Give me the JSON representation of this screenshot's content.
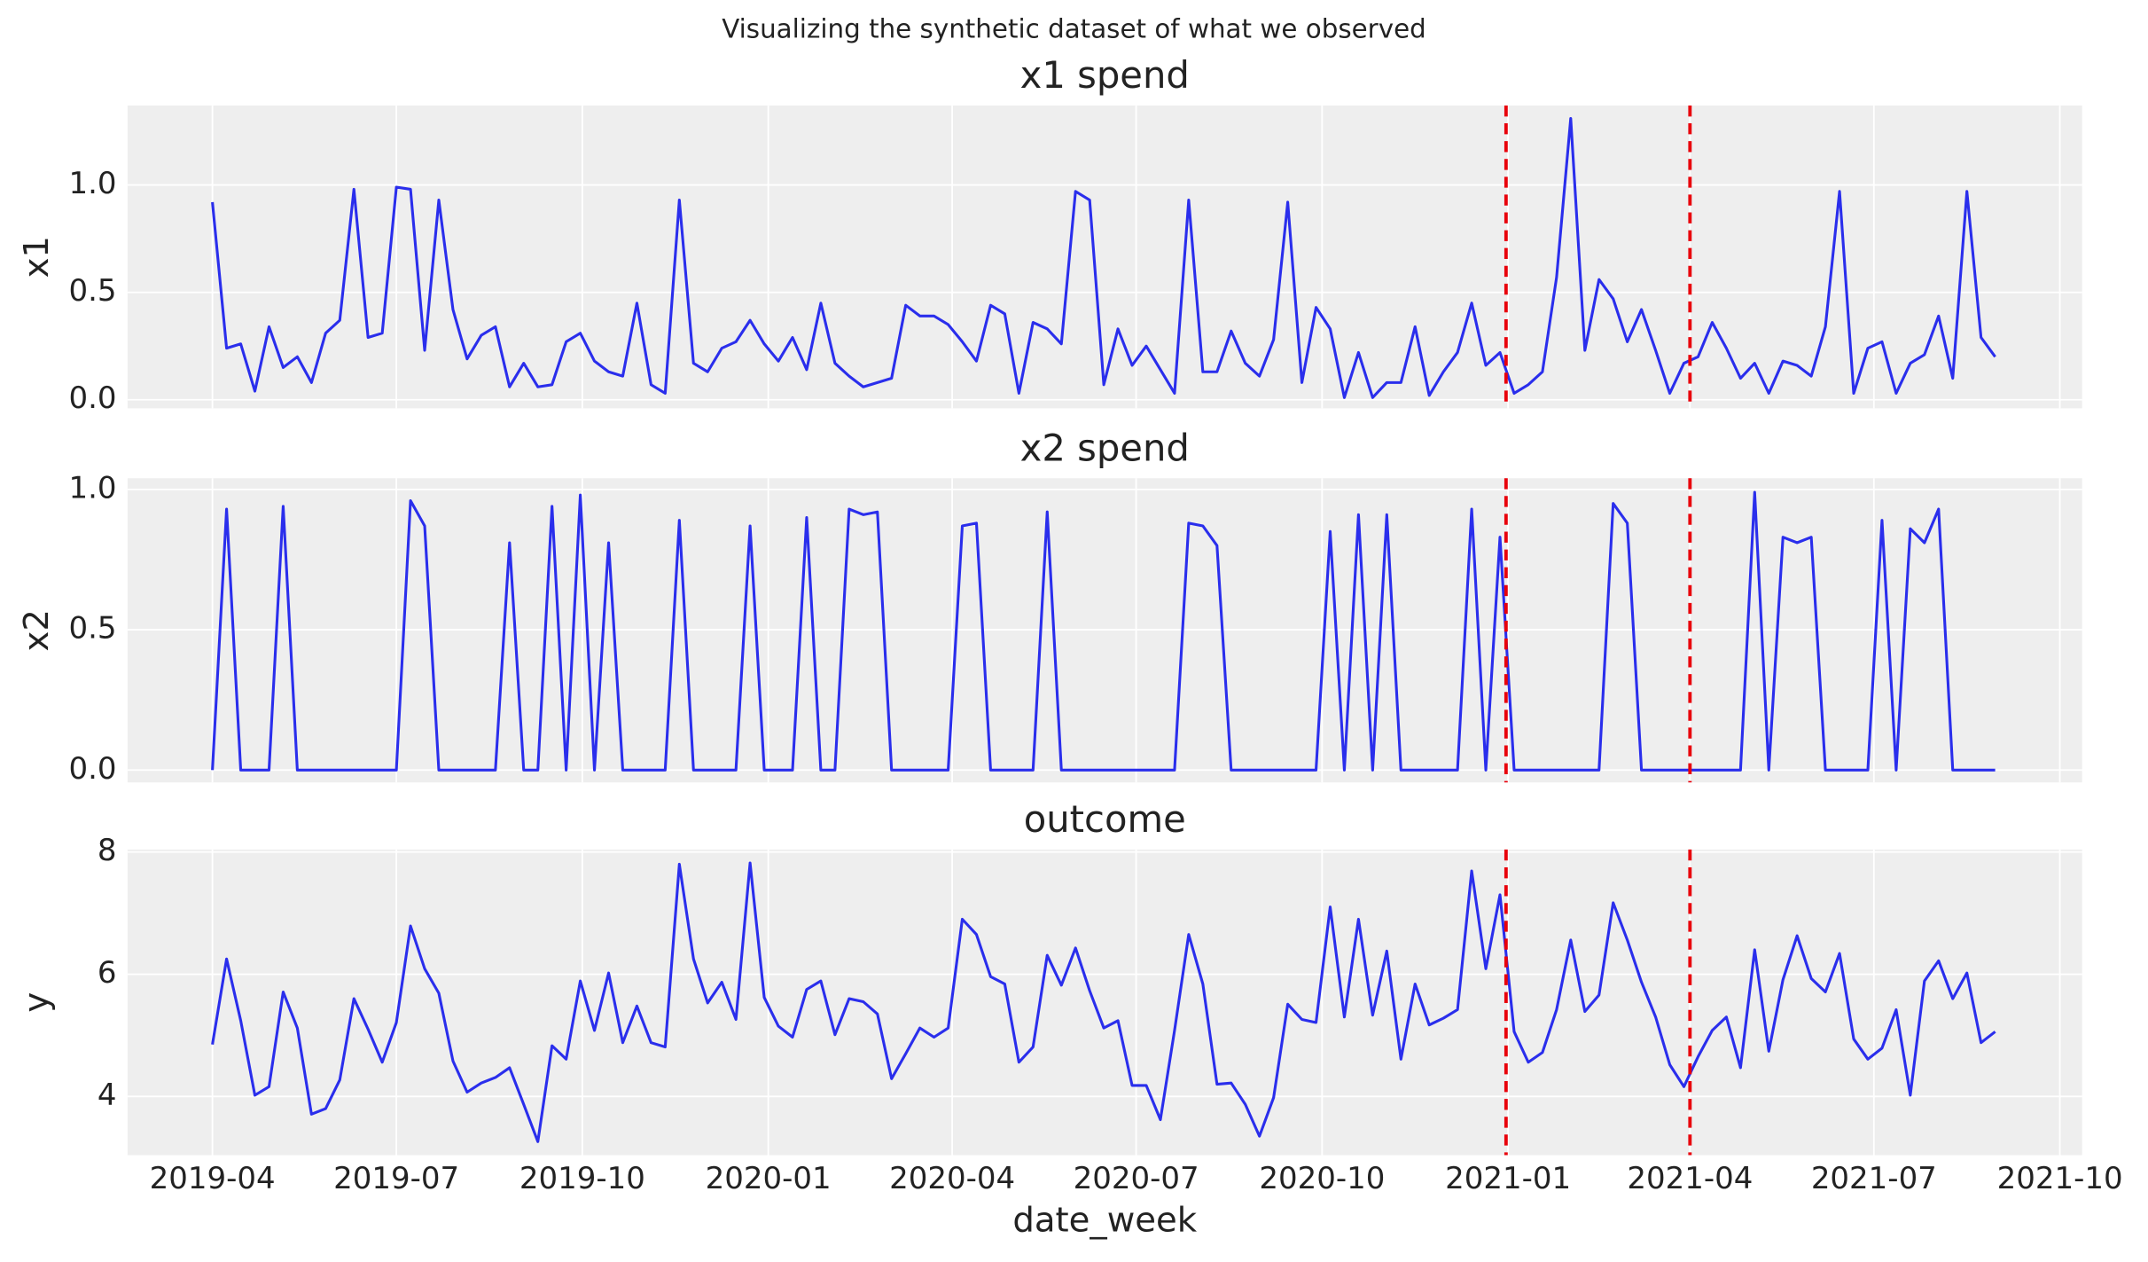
{
  "title": "Visualizing the synthetic dataset of what we observed",
  "chart_data": [
    {
      "type": "line",
      "title": "x1 spend",
      "ylabel": "x1",
      "x": [
        "2019-04-01",
        "2019-04-08",
        "2019-04-15",
        "2019-04-22",
        "2019-04-29",
        "2019-05-06",
        "2019-05-13",
        "2019-05-20",
        "2019-05-27",
        "2019-06-03",
        "2019-06-10",
        "2019-06-17",
        "2019-06-24",
        "2019-07-01",
        "2019-07-08",
        "2019-07-15",
        "2019-07-22",
        "2019-07-29",
        "2019-08-05",
        "2019-08-12",
        "2019-08-19",
        "2019-08-26",
        "2019-09-02",
        "2019-09-09",
        "2019-09-16",
        "2019-09-23",
        "2019-09-30",
        "2019-10-07",
        "2019-10-14",
        "2019-10-21",
        "2019-10-28",
        "2019-11-04",
        "2019-11-11",
        "2019-11-18",
        "2019-11-25",
        "2019-12-02",
        "2019-12-09",
        "2019-12-16",
        "2019-12-23",
        "2019-12-30",
        "2020-01-06",
        "2020-01-13",
        "2020-01-20",
        "2020-01-27",
        "2020-02-03",
        "2020-02-10",
        "2020-02-17",
        "2020-02-24",
        "2020-03-02",
        "2020-03-09",
        "2020-03-16",
        "2020-03-23",
        "2020-03-30",
        "2020-04-06",
        "2020-04-13",
        "2020-04-20",
        "2020-04-27",
        "2020-05-04",
        "2020-05-11",
        "2020-05-18",
        "2020-05-25",
        "2020-06-01",
        "2020-06-08",
        "2020-06-15",
        "2020-06-22",
        "2020-06-29",
        "2020-07-06",
        "2020-07-13",
        "2020-07-20",
        "2020-07-27",
        "2020-08-03",
        "2020-08-10",
        "2020-08-17",
        "2020-08-24",
        "2020-08-31",
        "2020-09-07",
        "2020-09-14",
        "2020-09-21",
        "2020-09-28",
        "2020-10-05",
        "2020-10-12",
        "2020-10-19",
        "2020-10-26",
        "2020-11-02",
        "2020-11-09",
        "2020-11-16",
        "2020-11-23",
        "2020-11-30",
        "2020-12-07",
        "2020-12-14",
        "2020-12-21",
        "2020-12-28",
        "2021-01-04",
        "2021-01-11",
        "2021-01-18",
        "2021-01-25",
        "2021-02-01",
        "2021-02-08",
        "2021-02-15",
        "2021-02-22",
        "2021-03-01",
        "2021-03-08",
        "2021-03-15",
        "2021-03-22",
        "2021-03-29",
        "2021-04-05",
        "2021-04-12",
        "2021-04-19",
        "2021-04-26",
        "2021-05-03",
        "2021-05-10",
        "2021-05-17",
        "2021-05-24",
        "2021-05-31",
        "2021-06-07",
        "2021-06-14",
        "2021-06-21",
        "2021-06-28",
        "2021-07-05",
        "2021-07-12",
        "2021-07-19",
        "2021-07-26",
        "2021-08-02",
        "2021-08-09",
        "2021-08-16",
        "2021-08-23",
        "2021-08-30"
      ],
      "values": [
        0.92,
        0.24,
        0.26,
        0.04,
        0.34,
        0.15,
        0.2,
        0.08,
        0.31,
        0.37,
        0.98,
        0.29,
        0.31,
        0.99,
        0.98,
        0.23,
        0.93,
        0.42,
        0.19,
        0.3,
        0.34,
        0.06,
        0.17,
        0.06,
        0.07,
        0.27,
        0.31,
        0.18,
        0.13,
        0.11,
        0.45,
        0.07,
        0.03,
        0.93,
        0.17,
        0.13,
        0.24,
        0.27,
        0.37,
        0.26,
        0.18,
        0.29,
        0.14,
        0.45,
        0.17,
        0.11,
        0.06,
        0.08,
        0.1,
        0.44,
        0.39,
        0.39,
        0.35,
        0.27,
        0.18,
        0.44,
        0.4,
        0.03,
        0.36,
        0.33,
        0.26,
        0.97,
        0.93,
        0.07,
        0.33,
        0.16,
        0.25,
        0.14,
        0.03,
        0.93,
        0.13,
        0.13,
        0.32,
        0.17,
        0.11,
        0.28,
        0.92,
        0.08,
        0.43,
        0.33,
        0.01,
        0.22,
        0.01,
        0.08,
        0.08,
        0.34,
        0.02,
        0.13,
        0.22,
        0.45,
        0.16,
        0.22,
        0.03,
        0.07,
        0.13,
        0.57,
        1.31,
        0.23,
        0.56,
        0.47,
        0.27,
        0.42,
        0.23,
        0.03,
        0.17,
        0.2,
        0.36,
        0.24,
        0.1,
        0.17,
        0.03,
        0.18,
        0.16,
        0.11,
        0.34,
        0.97,
        0.03,
        0.24,
        0.27,
        0.03,
        0.17,
        0.21,
        0.39,
        0.1,
        0.97,
        0.29,
        0.2
      ],
      "color": "#2a2eec",
      "xlim": [
        "2019-02-18",
        "2021-10-12"
      ],
      "ylim": [
        -0.04,
        1.37
      ],
      "yticks": [
        {
          "value": 0,
          "label": "0.0"
        },
        0.5,
        {
          "value": 1,
          "label": "1.0"
        }
      ],
      "grid": true,
      "vlines": [
        "2020-12-31",
        "2021-04-01"
      ],
      "vline_color": "#e8000b"
    },
    {
      "type": "line",
      "title": "x2 spend",
      "ylabel": "x2",
      "x": [
        "2019-04-01",
        "2019-04-08",
        "2019-04-15",
        "2019-04-22",
        "2019-04-29",
        "2019-05-06",
        "2019-05-13",
        "2019-05-20",
        "2019-05-27",
        "2019-06-03",
        "2019-06-10",
        "2019-06-17",
        "2019-06-24",
        "2019-07-01",
        "2019-07-08",
        "2019-07-15",
        "2019-07-22",
        "2019-07-29",
        "2019-08-05",
        "2019-08-12",
        "2019-08-19",
        "2019-08-26",
        "2019-09-02",
        "2019-09-09",
        "2019-09-16",
        "2019-09-23",
        "2019-09-30",
        "2019-10-07",
        "2019-10-14",
        "2019-10-21",
        "2019-10-28",
        "2019-11-04",
        "2019-11-11",
        "2019-11-18",
        "2019-11-25",
        "2019-12-02",
        "2019-12-09",
        "2019-12-16",
        "2019-12-23",
        "2019-12-30",
        "2020-01-06",
        "2020-01-13",
        "2020-01-20",
        "2020-01-27",
        "2020-02-03",
        "2020-02-10",
        "2020-02-17",
        "2020-02-24",
        "2020-03-02",
        "2020-03-09",
        "2020-03-16",
        "2020-03-23",
        "2020-03-30",
        "2020-04-06",
        "2020-04-13",
        "2020-04-20",
        "2020-04-27",
        "2020-05-04",
        "2020-05-11",
        "2020-05-18",
        "2020-05-25",
        "2020-06-01",
        "2020-06-08",
        "2020-06-15",
        "2020-06-22",
        "2020-06-29",
        "2020-07-06",
        "2020-07-13",
        "2020-07-20",
        "2020-07-27",
        "2020-08-03",
        "2020-08-10",
        "2020-08-17",
        "2020-08-24",
        "2020-08-31",
        "2020-09-07",
        "2020-09-14",
        "2020-09-21",
        "2020-09-28",
        "2020-10-05",
        "2020-10-12",
        "2020-10-19",
        "2020-10-26",
        "2020-11-02",
        "2020-11-09",
        "2020-11-16",
        "2020-11-23",
        "2020-11-30",
        "2020-12-07",
        "2020-12-14",
        "2020-12-21",
        "2020-12-28",
        "2021-01-04",
        "2021-01-11",
        "2021-01-18",
        "2021-01-25",
        "2021-02-01",
        "2021-02-08",
        "2021-02-15",
        "2021-02-22",
        "2021-03-01",
        "2021-03-08",
        "2021-03-15",
        "2021-03-22",
        "2021-03-29",
        "2021-04-05",
        "2021-04-12",
        "2021-04-19",
        "2021-04-26",
        "2021-05-03",
        "2021-05-10",
        "2021-05-17",
        "2021-05-24",
        "2021-05-31",
        "2021-06-07",
        "2021-06-14",
        "2021-06-21",
        "2021-06-28",
        "2021-07-05",
        "2021-07-12",
        "2021-07-19",
        "2021-07-26",
        "2021-08-02",
        "2021-08-09",
        "2021-08-16",
        "2021-08-23",
        "2021-08-30"
      ],
      "values": [
        0,
        0.93,
        0,
        0,
        0,
        0.94,
        0,
        0,
        0,
        0,
        0,
        0,
        0,
        0,
        0.96,
        0.87,
        0,
        0,
        0,
        0,
        0,
        0.81,
        0,
        0,
        0.94,
        0,
        0.98,
        0,
        0.81,
        0,
        0,
        0,
        0,
        0.89,
        0,
        0,
        0,
        0,
        0.87,
        0,
        0,
        0,
        0.9,
        0,
        0,
        0.93,
        0.91,
        0.92,
        0,
        0,
        0,
        0,
        0,
        0.87,
        0.88,
        0,
        0,
        0,
        0,
        0.92,
        0,
        0,
        0,
        0,
        0,
        0,
        0,
        0,
        0,
        0.88,
        0.87,
        0.8,
        0,
        0,
        0,
        0,
        0,
        0,
        0,
        0.85,
        0,
        0.91,
        0,
        0.91,
        0,
        0,
        0,
        0,
        0,
        0.93,
        0,
        0.83,
        0,
        0,
        0,
        0,
        0,
        0,
        0,
        0.95,
        0.88,
        0,
        0,
        0,
        0,
        0,
        0,
        0,
        0,
        0.99,
        0,
        0.83,
        0.81,
        0.83,
        0,
        0,
        0,
        0,
        0.89,
        0,
        0.86,
        0.81,
        0.93,
        0,
        0,
        0,
        0
      ],
      "color": "#2a2eec",
      "xlim": [
        "2019-02-18",
        "2021-10-12"
      ],
      "ylim": [
        -0.044,
        1.04
      ],
      "yticks": [
        {
          "value": 0,
          "label": "0.0"
        },
        0.5,
        {
          "value": 1,
          "label": "1.0"
        }
      ],
      "grid": true,
      "vlines": [
        "2020-12-31",
        "2021-04-01"
      ],
      "vline_color": "#e8000b"
    },
    {
      "type": "line",
      "title": "outcome",
      "ylabel": "y",
      "xlabel": "date_week",
      "x": [
        "2019-04-01",
        "2019-04-08",
        "2019-04-15",
        "2019-04-22",
        "2019-04-29",
        "2019-05-06",
        "2019-05-13",
        "2019-05-20",
        "2019-05-27",
        "2019-06-03",
        "2019-06-10",
        "2019-06-17",
        "2019-06-24",
        "2019-07-01",
        "2019-07-08",
        "2019-07-15",
        "2019-07-22",
        "2019-07-29",
        "2019-08-05",
        "2019-08-12",
        "2019-08-19",
        "2019-08-26",
        "2019-09-02",
        "2019-09-09",
        "2019-09-16",
        "2019-09-23",
        "2019-09-30",
        "2019-10-07",
        "2019-10-14",
        "2019-10-21",
        "2019-10-28",
        "2019-11-04",
        "2019-11-11",
        "2019-11-18",
        "2019-11-25",
        "2019-12-02",
        "2019-12-09",
        "2019-12-16",
        "2019-12-23",
        "2019-12-30",
        "2020-01-06",
        "2020-01-13",
        "2020-01-20",
        "2020-01-27",
        "2020-02-03",
        "2020-02-10",
        "2020-02-17",
        "2020-02-24",
        "2020-03-02",
        "2020-03-09",
        "2020-03-16",
        "2020-03-23",
        "2020-03-30",
        "2020-04-06",
        "2020-04-13",
        "2020-04-20",
        "2020-04-27",
        "2020-05-04",
        "2020-05-11",
        "2020-05-18",
        "2020-05-25",
        "2020-06-01",
        "2020-06-08",
        "2020-06-15",
        "2020-06-22",
        "2020-06-29",
        "2020-07-06",
        "2020-07-13",
        "2020-07-20",
        "2020-07-27",
        "2020-08-03",
        "2020-08-10",
        "2020-08-17",
        "2020-08-24",
        "2020-08-31",
        "2020-09-07",
        "2020-09-14",
        "2020-09-21",
        "2020-09-28",
        "2020-10-05",
        "2020-10-12",
        "2020-10-19",
        "2020-10-26",
        "2020-11-02",
        "2020-11-09",
        "2020-11-16",
        "2020-11-23",
        "2020-11-30",
        "2020-12-07",
        "2020-12-14",
        "2020-12-21",
        "2020-12-28",
        "2021-01-04",
        "2021-01-11",
        "2021-01-18",
        "2021-01-25",
        "2021-02-01",
        "2021-02-08",
        "2021-02-15",
        "2021-02-22",
        "2021-03-01",
        "2021-03-08",
        "2021-03-15",
        "2021-03-22",
        "2021-03-29",
        "2021-04-05",
        "2021-04-12",
        "2021-04-19",
        "2021-04-26",
        "2021-05-03",
        "2021-05-10",
        "2021-05-17",
        "2021-05-24",
        "2021-05-31",
        "2021-06-07",
        "2021-06-14",
        "2021-06-21",
        "2021-06-28",
        "2021-07-05",
        "2021-07-12",
        "2021-07-19",
        "2021-07-26",
        "2021-08-02",
        "2021-08-09",
        "2021-08-16",
        "2021-08-23",
        "2021-08-30"
      ],
      "values": [
        4.85,
        6.25,
        5.24,
        4.02,
        4.16,
        5.71,
        5.12,
        3.71,
        3.8,
        4.27,
        5.6,
        5.1,
        4.56,
        5.21,
        6.79,
        6.09,
        5.69,
        4.58,
        4.07,
        4.22,
        4.31,
        4.47,
        3.87,
        3.26,
        4.83,
        4.61,
        5.89,
        5.08,
        6.02,
        4.88,
        5.48,
        4.88,
        4.81,
        7.8,
        6.25,
        5.53,
        5.87,
        5.26,
        7.82,
        5.62,
        5.15,
        4.97,
        5.75,
        5.89,
        5.01,
        5.6,
        5.55,
        5.35,
        4.29,
        4.7,
        5.12,
        4.97,
        5.12,
        6.9,
        6.65,
        5.96,
        5.84,
        4.56,
        4.81,
        6.31,
        5.82,
        6.43,
        5.73,
        5.12,
        5.24,
        4.18,
        4.18,
        3.62,
        5.08,
        6.65,
        5.84,
        4.2,
        4.22,
        3.87,
        3.35,
        3.98,
        5.51,
        5.26,
        5.21,
        7.1,
        5.3,
        6.9,
        5.33,
        6.38,
        4.61,
        5.84,
        5.17,
        5.28,
        5.42,
        7.69,
        6.09,
        7.3,
        5.06,
        4.56,
        4.72,
        5.42,
        6.56,
        5.39,
        5.66,
        7.17,
        6.56,
        5.87,
        5.3,
        4.52,
        4.16,
        4.65,
        5.08,
        5.3,
        4.47,
        6.4,
        4.74,
        5.91,
        6.63,
        5.93,
        5.71,
        6.34,
        4.94,
        4.61,
        4.79,
        5.42,
        4.02,
        5.89,
        6.22,
        5.6,
        6.02,
        4.88,
        5.06
      ],
      "color": "#2a2eec",
      "xlim": [
        "2019-02-18",
        "2021-10-12"
      ],
      "ylim": [
        3.04,
        8.04
      ],
      "yticks": [
        4,
        6,
        8
      ],
      "xticks": [
        "2019-04",
        "2019-07",
        "2019-10",
        "2020-01",
        "2020-04",
        "2020-07",
        "2020-10",
        "2021-01",
        "2021-04",
        "2021-07",
        "2021-10"
      ],
      "grid": true,
      "vlines": [
        "2020-12-31",
        "2021-04-01"
      ],
      "vline_color": "#e8000b"
    }
  ]
}
